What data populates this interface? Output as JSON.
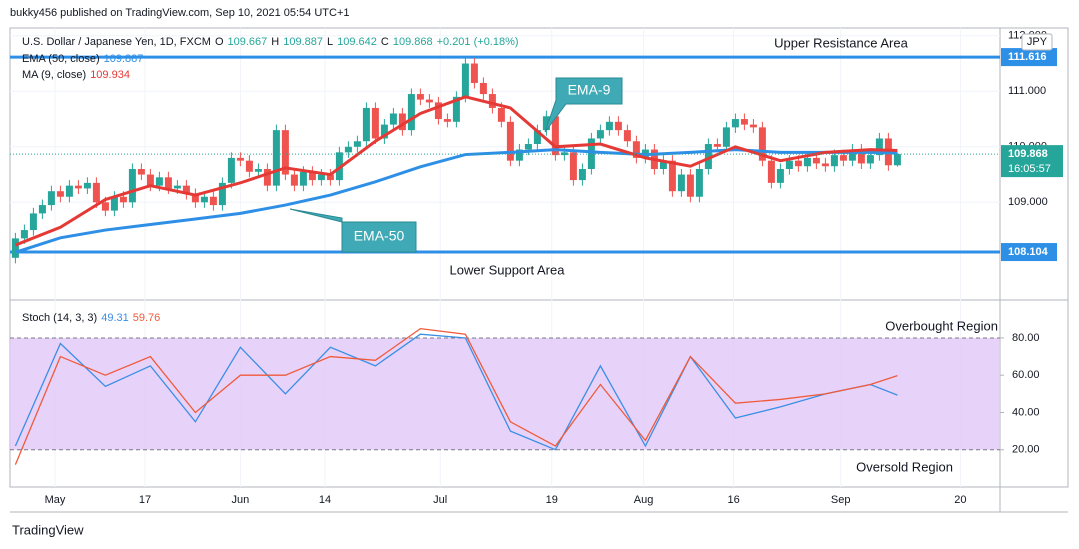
{
  "chart_data": {
    "type": "candlestick",
    "credit": "bukky456 published on TradingView.com, Sep 10, 2021 05:54 UTC+1",
    "header": {
      "symbol": "U.S. Dollar / Japanese Yen, 1D, FXCM",
      "ohlc_letters": [
        "O",
        "H",
        "L",
        "C"
      ],
      "change": "+0.201 (+0.18%)"
    },
    "currency": "JPY",
    "countdown": "16:05:57",
    "footer": "TradingView",
    "colors": {
      "up": "#26a69a",
      "down": "#ef5350"
    },
    "candles": {
      "open": [
        108.0,
        108.35,
        108.5,
        108.8,
        108.95,
        109.2,
        109.1,
        109.3,
        109.25,
        109.35,
        109.0,
        108.85,
        109.1,
        109.0,
        109.6,
        109.5,
        109.3,
        109.45,
        109.25,
        109.3,
        109.15,
        109.0,
        109.1,
        108.95,
        109.35,
        109.8,
        109.75,
        109.55,
        109.6,
        109.3,
        110.3,
        109.5,
        109.3,
        109.55,
        109.4,
        109.5,
        109.4,
        109.9,
        110.0,
        110.1,
        110.7,
        110.15,
        110.4,
        110.6,
        110.3,
        110.95,
        110.85,
        110.8,
        110.5,
        110.45,
        110.9,
        111.5,
        111.15,
        110.95,
        110.7,
        110.45,
        109.75,
        109.95,
        110.05,
        110.3,
        110.55,
        109.85,
        109.9,
        109.4,
        109.6,
        110.15,
        110.3,
        110.45,
        110.3,
        110.1,
        109.8,
        109.95,
        109.6,
        109.75,
        109.2,
        109.5,
        109.1,
        109.6,
        110.05,
        110.0,
        110.35,
        110.5,
        110.4,
        110.35,
        109.75,
        109.35,
        109.6,
        109.75,
        109.65,
        109.8,
        109.7,
        109.65,
        109.85,
        109.75,
        109.95,
        109.7,
        109.85,
        110.15,
        109.667
      ],
      "high": [
        108.45,
        108.6,
        108.9,
        109.05,
        109.3,
        109.3,
        109.4,
        109.4,
        109.45,
        109.45,
        109.1,
        109.2,
        109.2,
        109.7,
        109.7,
        109.6,
        109.55,
        109.55,
        109.4,
        109.4,
        109.25,
        109.2,
        109.2,
        109.45,
        109.9,
        109.9,
        109.85,
        109.7,
        109.7,
        110.4,
        110.4,
        109.6,
        109.65,
        109.65,
        109.6,
        109.6,
        110.0,
        110.1,
        110.2,
        110.8,
        110.8,
        110.5,
        110.7,
        110.7,
        111.05,
        111.05,
        110.95,
        110.9,
        110.6,
        111.0,
        111.6,
        111.6,
        111.25,
        111.05,
        110.8,
        110.55,
        110.05,
        110.15,
        110.4,
        110.65,
        110.65,
        110.0,
        110.0,
        109.7,
        110.25,
        110.4,
        110.55,
        110.55,
        110.4,
        110.2,
        110.05,
        110.05,
        109.85,
        109.85,
        109.6,
        109.6,
        109.7,
        110.15,
        110.15,
        110.45,
        110.6,
        110.6,
        110.5,
        110.45,
        109.85,
        109.7,
        109.85,
        109.85,
        109.9,
        109.9,
        109.8,
        109.95,
        109.95,
        110.05,
        110.05,
        109.95,
        110.25,
        110.25,
        109.887
      ],
      "low": [
        107.9,
        108.25,
        108.4,
        108.7,
        108.85,
        109.0,
        109.0,
        109.15,
        109.15,
        108.9,
        108.75,
        108.75,
        108.9,
        108.9,
        109.4,
        109.2,
        109.2,
        109.15,
        109.15,
        109.05,
        108.9,
        108.9,
        108.85,
        108.85,
        109.25,
        109.65,
        109.45,
        109.45,
        109.2,
        109.2,
        109.4,
        109.2,
        109.2,
        109.3,
        109.3,
        109.3,
        109.3,
        109.8,
        109.9,
        110.0,
        110.05,
        110.05,
        110.3,
        110.2,
        110.2,
        110.75,
        110.7,
        110.4,
        110.35,
        110.35,
        110.8,
        111.05,
        110.85,
        110.6,
        110.35,
        109.65,
        109.65,
        109.85,
        109.95,
        110.2,
        109.75,
        109.75,
        109.3,
        109.3,
        109.5,
        110.05,
        110.2,
        110.2,
        110.0,
        109.7,
        109.7,
        109.5,
        109.5,
        109.1,
        109.1,
        109.0,
        109.0,
        109.5,
        109.9,
        109.9,
        110.25,
        110.3,
        110.25,
        109.65,
        109.25,
        109.25,
        109.5,
        109.55,
        109.55,
        109.6,
        109.55,
        109.55,
        109.65,
        109.65,
        109.6,
        109.6,
        109.75,
        109.567,
        109.642
      ],
      "close": [
        108.35,
        108.5,
        108.8,
        108.95,
        109.2,
        109.1,
        109.3,
        109.25,
        109.35,
        109.0,
        108.85,
        109.1,
        109.0,
        109.6,
        109.5,
        109.3,
        109.45,
        109.25,
        109.3,
        109.15,
        109.0,
        109.1,
        108.95,
        109.35,
        109.8,
        109.75,
        109.55,
        109.6,
        109.3,
        110.3,
        109.5,
        109.3,
        109.55,
        109.4,
        109.5,
        109.4,
        109.9,
        110.0,
        110.1,
        110.7,
        110.15,
        110.4,
        110.6,
        110.3,
        110.95,
        110.85,
        110.8,
        110.5,
        110.45,
        110.9,
        111.5,
        111.15,
        110.95,
        110.7,
        110.45,
        109.75,
        109.95,
        110.05,
        110.3,
        110.55,
        109.85,
        109.9,
        109.4,
        109.6,
        110.15,
        110.3,
        110.45,
        110.3,
        110.1,
        109.8,
        109.95,
        109.6,
        109.75,
        109.2,
        109.5,
        109.1,
        109.6,
        110.05,
        110.0,
        110.35,
        110.5,
        110.4,
        110.35,
        109.75,
        109.35,
        109.6,
        109.75,
        109.65,
        109.8,
        109.7,
        109.65,
        109.85,
        109.75,
        109.95,
        109.7,
        109.85,
        110.15,
        109.667,
        109.868
      ]
    },
    "xlim": [
      -0.6,
      109.4
    ],
    "xticks": [
      {
        "value": 4.4,
        "label": "May"
      },
      {
        "value": 14.4,
        "label": "17"
      },
      {
        "value": 25,
        "label": "Jun"
      },
      {
        "value": 34.4,
        "label": "14"
      },
      {
        "value": 47.2,
        "label": "Jul"
      },
      {
        "value": 59.6,
        "label": "19"
      },
      {
        "value": 69.8,
        "label": "Aug"
      },
      {
        "value": 79.8,
        "label": "16"
      },
      {
        "value": 91.7,
        "label": "Sep"
      },
      {
        "value": 105,
        "label": "20"
      }
    ],
    "ylim": [
      107.24,
      112.14
    ],
    "yticks": [
      {
        "value": 109,
        "label": "109.000"
      },
      {
        "value": 110,
        "label": "110.000"
      },
      {
        "value": 111,
        "label": "111.000"
      },
      {
        "value": 112,
        "label": "112.000"
      }
    ],
    "series": [
      {
        "name": "EMA (50, close)",
        "last": 109.887,
        "color": "#2e8fe6",
        "x": [
          0,
          5,
          10,
          15,
          20,
          25,
          30,
          35,
          40,
          45,
          50,
          55,
          60,
          65,
          70,
          75,
          80,
          85,
          90,
          95,
          98
        ],
        "values": [
          108.1,
          108.36,
          108.5,
          108.6,
          108.7,
          108.8,
          108.95,
          109.13,
          109.37,
          109.64,
          109.86,
          109.9,
          109.95,
          109.9,
          109.86,
          109.9,
          109.95,
          109.9,
          109.9,
          109.9,
          109.887
        ]
      },
      {
        "name": "MA (9, close)",
        "last": 109.934,
        "color": "#e53935",
        "x": [
          0,
          5,
          10,
          15,
          20,
          25,
          30,
          35,
          40,
          45,
          50,
          55,
          60,
          65,
          70,
          75,
          80,
          85,
          90,
          95,
          98
        ],
        "values": [
          108.23,
          108.55,
          109.05,
          109.3,
          109.13,
          109.35,
          109.62,
          109.5,
          110.1,
          110.6,
          110.9,
          110.7,
          110.0,
          110.05,
          109.8,
          109.65,
          110.0,
          109.75,
          109.9,
          109.95,
          109.934
        ]
      }
    ],
    "levels": [
      {
        "value": 111.616,
        "label": "Upper Resistance Area"
      },
      {
        "value": 108.104,
        "label": "Lower Support Area"
      }
    ],
    "callouts": [
      "EMA-9",
      "EMA-50"
    ],
    "stoch": {
      "name": "Stoch (14, 3, 3)",
      "ylim": [
        0,
        95
      ],
      "yticks": [
        {
          "value": 20,
          "label": "20.00"
        },
        {
          "value": 40,
          "label": "40.00"
        },
        {
          "value": 60,
          "label": "60.00"
        },
        {
          "value": 80,
          "label": "80.00"
        }
      ],
      "bands": [
        20,
        80
      ],
      "band_color": "#e1c8f7",
      "labels": [
        "Overbought Region",
        "Oversold Region"
      ],
      "series": [
        {
          "last": 49.31,
          "color": "#3b8ee6",
          "x": [
            0,
            5,
            10,
            15,
            20,
            25,
            30,
            35,
            40,
            45,
            50,
            55,
            60,
            65,
            70,
            75,
            80,
            85,
            90,
            95,
            98
          ],
          "values": [
            22,
            77,
            54,
            65,
            35,
            75,
            50,
            75,
            65,
            82,
            80,
            30,
            20,
            65,
            22,
            70,
            37,
            43,
            50,
            55,
            49.31
          ]
        },
        {
          "last": 59.76,
          "color": "#f05a3a",
          "x": [
            0,
            5,
            10,
            15,
            20,
            25,
            30,
            35,
            40,
            45,
            50,
            55,
            60,
            65,
            70,
            75,
            80,
            85,
            90,
            95,
            98
          ],
          "values": [
            12,
            70,
            60,
            70,
            40,
            60,
            60,
            70,
            68,
            85,
            82,
            35,
            22,
            55,
            25,
            70,
            45,
            47,
            50,
            55,
            59.76
          ]
        }
      ]
    }
  }
}
